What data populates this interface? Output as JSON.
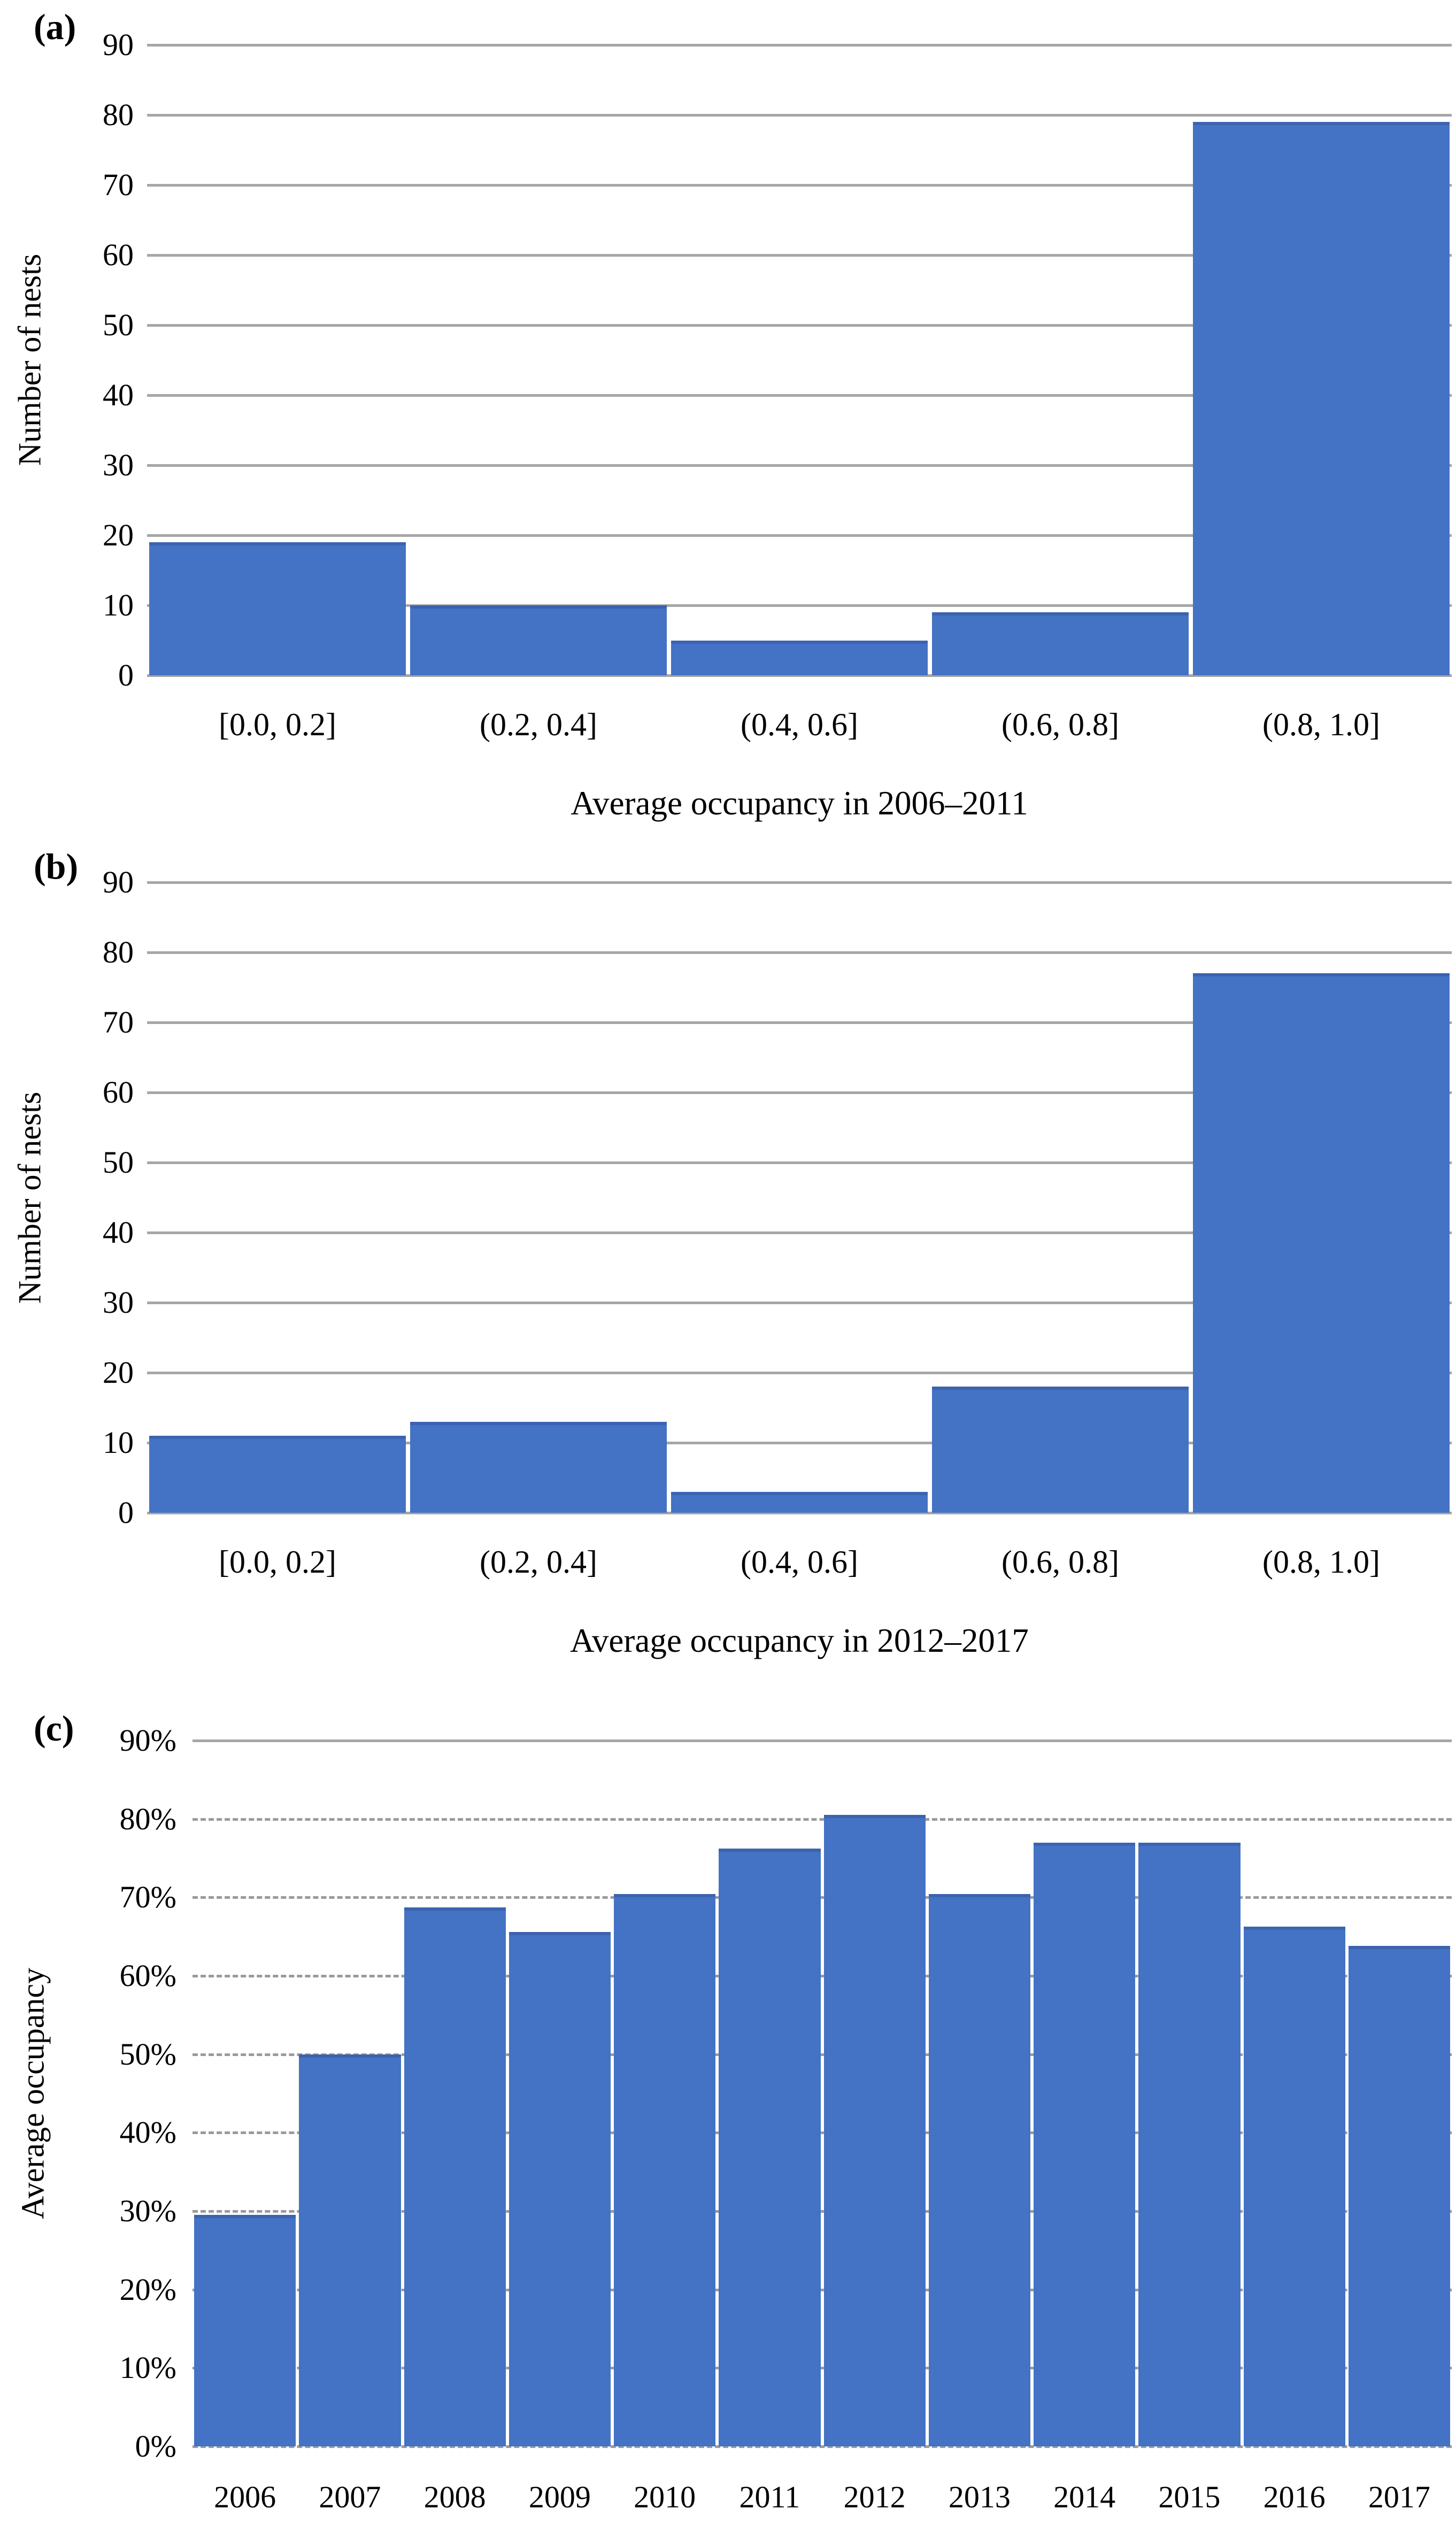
{
  "colors": {
    "bar": "#4472C4",
    "bar_top_edge": "#3B63B0",
    "gridline": "#A6A6A6",
    "text": "#000000",
    "background": "#FFFFFF"
  },
  "chart_data": [
    {
      "type": "bar",
      "panel_letter": "(a)",
      "title": "",
      "ylabel": "Number of nests",
      "xlabel": "Average occupancy in 2006–2011",
      "categories": [
        "[0.0, 0.2]",
        "(0.2, 0.4]",
        "(0.4, 0.6]",
        "(0.6, 0.8]",
        "(0.8, 1.0]"
      ],
      "values": [
        19,
        10,
        5,
        9,
        79
      ],
      "ylim": [
        0,
        90
      ],
      "y_tick_values": [
        0,
        10,
        20,
        30,
        40,
        50,
        60,
        70,
        80,
        90
      ],
      "y_tick_labels": [
        "0",
        "10",
        "20",
        "30",
        "40",
        "50",
        "60",
        "70",
        "80",
        "90"
      ],
      "gridline_style": "solid",
      "grid": true,
      "legend": false
    },
    {
      "type": "bar",
      "panel_letter": "(b)",
      "title": "",
      "ylabel": "Number of nests",
      "xlabel": "Average occupancy in 2012–2017",
      "categories": [
        "[0.0, 0.2]",
        "(0.2, 0.4]",
        "(0.4, 0.6]",
        "(0.6, 0.8]",
        "(0.8, 1.0]"
      ],
      "values": [
        11,
        13,
        3,
        18,
        77
      ],
      "ylim": [
        0,
        90
      ],
      "y_tick_values": [
        0,
        10,
        20,
        30,
        40,
        50,
        60,
        70,
        80,
        90
      ],
      "y_tick_labels": [
        "0",
        "10",
        "20",
        "30",
        "40",
        "50",
        "60",
        "70",
        "80",
        "90"
      ],
      "gridline_style": "solid",
      "grid": true,
      "legend": false
    },
    {
      "type": "bar",
      "panel_letter": "(c)",
      "title": "",
      "ylabel": "Average occupancy",
      "xlabel": "",
      "categories": [
        "2006",
        "2007",
        "2008",
        "2009",
        "2010",
        "2011",
        "2012",
        "2013",
        "2014",
        "2015",
        "2016",
        "2017"
      ],
      "values": [
        29.5,
        50,
        68.7,
        65.6,
        70.4,
        76.2,
        80.5,
        70.4,
        77,
        77,
        66.3,
        63.8
      ],
      "unit": "%",
      "ylim": [
        0,
        90
      ],
      "y_tick_values": [
        0,
        10,
        20,
        30,
        40,
        50,
        60,
        70,
        80,
        90
      ],
      "y_tick_labels": [
        "0%",
        "10%",
        "20%",
        "30%",
        "40%",
        "50%",
        "60%",
        "70%",
        "80%",
        "90%"
      ],
      "gridline_style": "dashed",
      "grid": true,
      "legend": false
    }
  ]
}
